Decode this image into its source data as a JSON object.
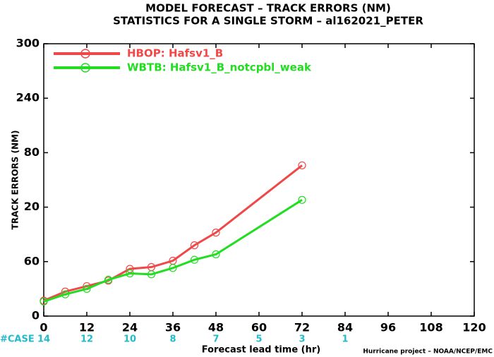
{
  "chart_data": {
    "type": "line",
    "title": "MODEL FORECAST – TRACK ERRORS (NM)",
    "subtitle": "STATISTICS FOR A SINGLE STORM – al162021_PETER",
    "x_label": "Forecast lead time (hr)",
    "y_label": "TRACK ERRORS (NM)",
    "credit": "Hurricane project – NOAA/NCEP/EMC",
    "x": [
      0,
      6,
      12,
      18,
      24,
      30,
      36,
      42,
      48,
      72
    ],
    "series": [
      {
        "name": "HBOP: Hafsv1_B",
        "color": "#f04848",
        "values": [
          17,
          27,
          33,
          39,
          52,
          54,
          61,
          78,
          92,
          166
        ]
      },
      {
        "name": "WBTB: Hafsv1_B_notcpbl_weak",
        "color": "#22dd22",
        "values": [
          16,
          24,
          30,
          40,
          47,
          46,
          53,
          62,
          68,
          128
        ]
      }
    ],
    "xlim": [
      0,
      120
    ],
    "xticks": [
      0,
      12,
      24,
      36,
      48,
      60,
      72,
      84,
      96,
      108,
      120
    ],
    "ylim": [
      0,
      300
    ],
    "yticks": [
      0,
      60,
      {
        "value": 120,
        "label": "20"
      },
      {
        "value": 180,
        "label": "80"
      },
      240,
      300
    ],
    "cases": {
      "label": "#CASE",
      "color": "#22bbcc",
      "counts": [
        14,
        12,
        10,
        8,
        7,
        5,
        3,
        1
      ]
    },
    "legend": "upper left"
  }
}
